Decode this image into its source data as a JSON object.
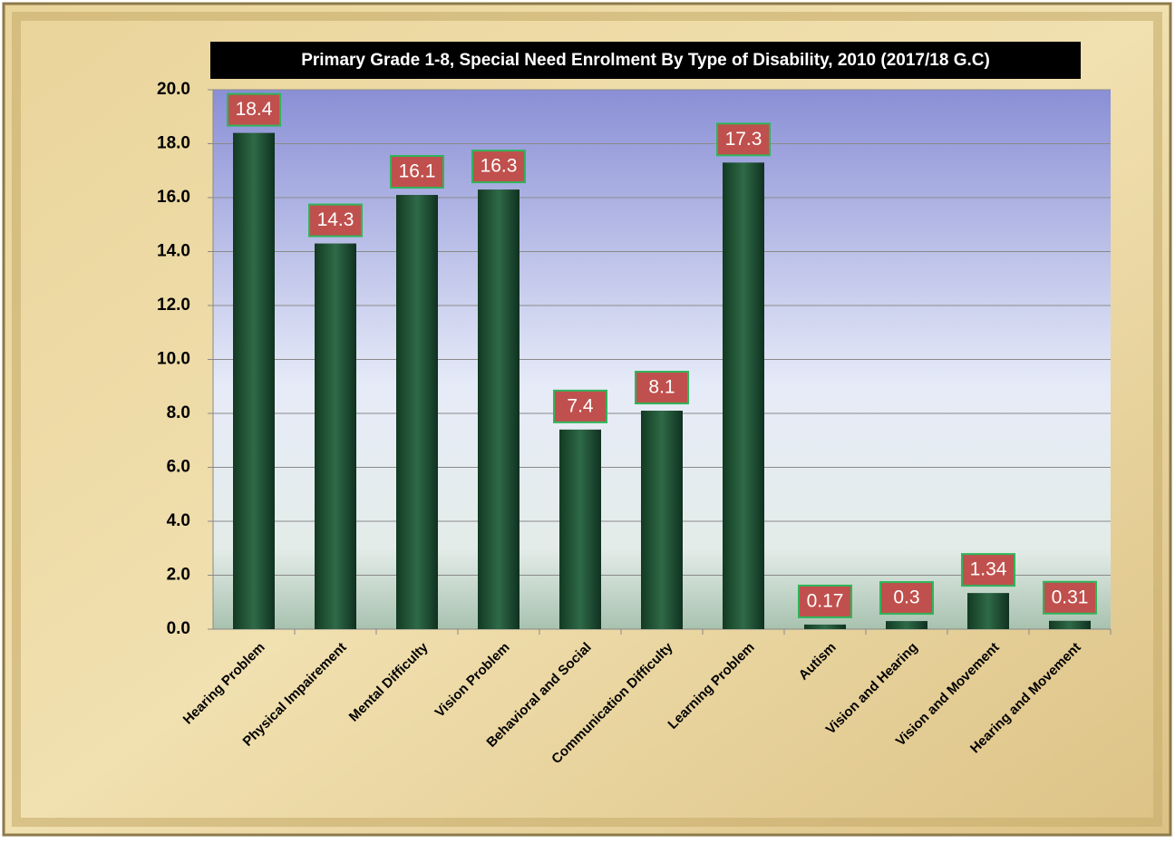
{
  "chart_data": {
    "type": "bar",
    "title": "Primary  Grade 1-8, Special Need Enrolment By Type of Disability, 2010 (2017/18 G.C)",
    "categories": [
      "Hearing Problem",
      "Physical Impairement",
      "Mental Difficulty",
      "Vision Problem",
      "Behavioral and Social",
      "Communication Difficulty",
      "Learning Problem",
      "Autism",
      "Vision and Hearing",
      "Vision and Movement",
      "Hearing and Movement"
    ],
    "values": [
      18.4,
      14.3,
      16.1,
      16.3,
      7.4,
      8.1,
      17.3,
      0.17,
      0.3,
      1.34,
      0.31
    ],
    "color": "#1f4a2e",
    "ylim": [
      0,
      20
    ],
    "yticks": [
      {
        "value": 0,
        "label": "0.0"
      },
      {
        "value": 2,
        "label": "2.0"
      },
      {
        "value": 4,
        "label": "4.0"
      },
      {
        "value": 6,
        "label": "6.0"
      },
      {
        "value": 8,
        "label": "8.0"
      },
      {
        "value": 10,
        "label": "10.0"
      },
      {
        "value": 12,
        "label": "12.0"
      },
      {
        "value": 14,
        "label": "14.0"
      },
      {
        "value": 16,
        "label": "16.0"
      },
      {
        "value": 18,
        "label": "18.0"
      },
      {
        "value": 20,
        "label": "20.0"
      }
    ],
    "grid": true
  }
}
